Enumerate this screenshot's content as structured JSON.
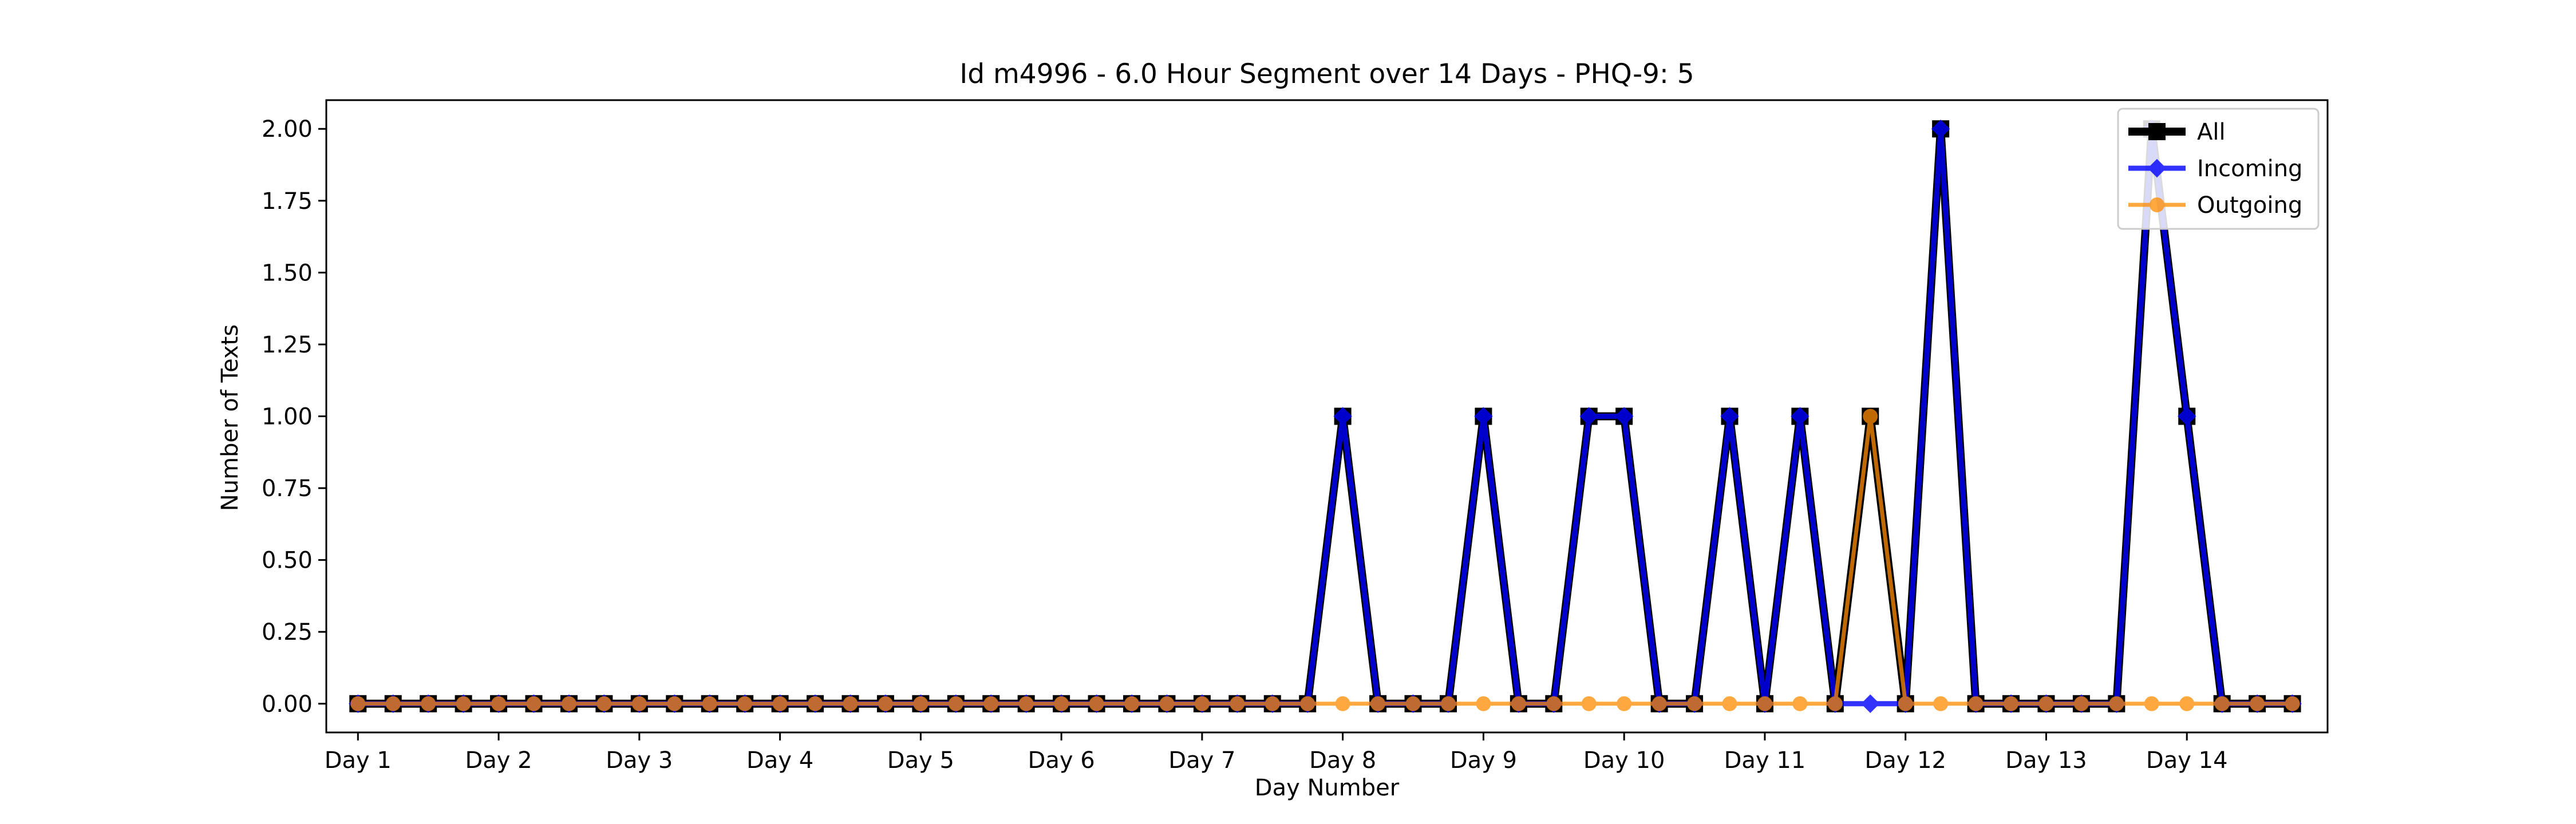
{
  "chart_data": {
    "type": "line",
    "title": "Id m4996 - 6.0 Hour Segment over 14 Days - PHQ-9: 5",
    "xlabel": "Day Number",
    "ylabel": "Number of Texts",
    "x_tick_labels": [
      "Day 1",
      "Day 2",
      "Day 3",
      "Day 4",
      "Day 5",
      "Day 6",
      "Day 7",
      "Day 8",
      "Day 9",
      "Day 10",
      "Day 11",
      "Day 12",
      "Day 13",
      "Day 14"
    ],
    "y_tick_labels": [
      "0.00",
      "0.25",
      "0.50",
      "0.75",
      "1.00",
      "1.25",
      "1.50",
      "1.75",
      "2.00"
    ],
    "ylim": [
      -0.1,
      2.1
    ],
    "xlim": [
      -0.9,
      56.0
    ],
    "grid": false,
    "legend_position": "top-right",
    "x": [
      0,
      1,
      2,
      3,
      4,
      5,
      6,
      7,
      8,
      9,
      10,
      11,
      12,
      13,
      14,
      15,
      16,
      17,
      18,
      19,
      20,
      21,
      22,
      23,
      24,
      25,
      26,
      27,
      28,
      29,
      30,
      31,
      32,
      33,
      34,
      35,
      36,
      37,
      38,
      39,
      40,
      41,
      42,
      43,
      44,
      45,
      46,
      47,
      48,
      49,
      50,
      51,
      52,
      53,
      54,
      55
    ],
    "series": [
      {
        "name": "All",
        "color": "#000000",
        "marker": "square",
        "values": [
          0,
          0,
          0,
          0,
          0,
          0,
          0,
          0,
          0,
          0,
          0,
          0,
          0,
          0,
          0,
          0,
          0,
          0,
          0,
          0,
          0,
          0,
          0,
          0,
          0,
          0,
          0,
          0,
          1,
          0,
          0,
          0,
          1,
          0,
          0,
          1,
          1,
          0,
          0,
          1,
          0,
          1,
          0,
          1,
          0,
          2,
          0,
          0,
          0,
          0,
          0,
          2,
          1,
          0,
          0,
          0
        ]
      },
      {
        "name": "Incoming",
        "color": "#0000ff",
        "marker": "diamond",
        "values": [
          0,
          0,
          0,
          0,
          0,
          0,
          0,
          0,
          0,
          0,
          0,
          0,
          0,
          0,
          0,
          0,
          0,
          0,
          0,
          0,
          0,
          0,
          0,
          0,
          0,
          0,
          0,
          0,
          1,
          0,
          0,
          0,
          1,
          0,
          0,
          1,
          1,
          0,
          0,
          1,
          0,
          1,
          0,
          0,
          0,
          2,
          0,
          0,
          0,
          0,
          0,
          2,
          1,
          0,
          0,
          0
        ]
      },
      {
        "name": "Outgoing",
        "color": "#ff8c00",
        "marker": "circle",
        "values": [
          0,
          0,
          0,
          0,
          0,
          0,
          0,
          0,
          0,
          0,
          0,
          0,
          0,
          0,
          0,
          0,
          0,
          0,
          0,
          0,
          0,
          0,
          0,
          0,
          0,
          0,
          0,
          0,
          0,
          0,
          0,
          0,
          0,
          0,
          0,
          0,
          0,
          0,
          0,
          0,
          0,
          0,
          0,
          1,
          0,
          0,
          0,
          0,
          0,
          0,
          0,
          0,
          0,
          0,
          0,
          0
        ]
      }
    ]
  }
}
